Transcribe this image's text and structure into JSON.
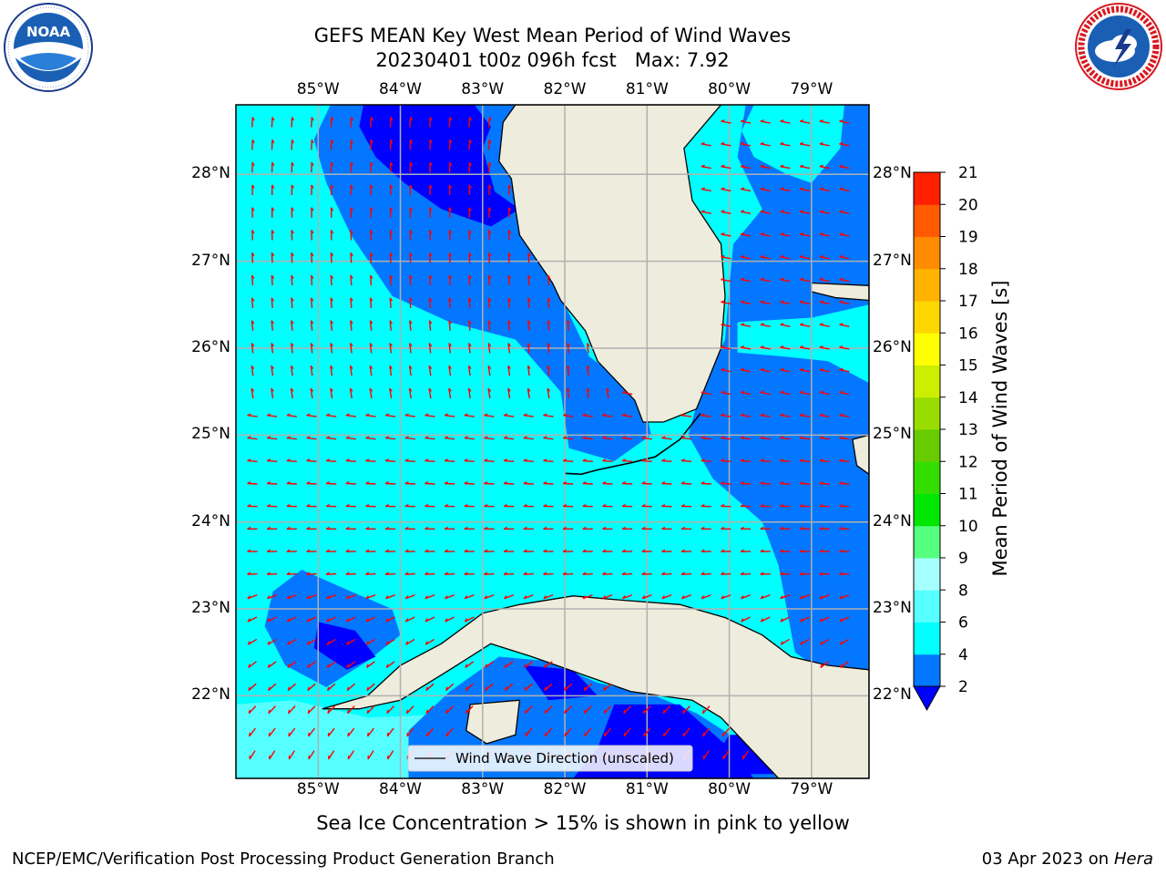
{
  "title": {
    "line1": "GEFS MEAN Key West Mean Period of Wind Waves",
    "line2": "20230401 t00z 096h fcst   Max: 7.92"
  },
  "logos": {
    "noaa": {
      "icon": "noaa-logo",
      "text": "NOAA",
      "ring_text": "NATIONAL OCEANIC AND ATMOSPHERIC ADMINISTRATION · U.S. DEPARTMENT OF COMMERCE"
    },
    "nws": {
      "icon": "nws-logo",
      "ring_text": "NATIONAL WEATHER SERVICE"
    }
  },
  "map": {
    "lon_range": [
      -86,
      -78.3
    ],
    "lat_range": [
      21.05,
      28.8
    ],
    "lon_ticks": [
      "85°W",
      "84°W",
      "83°W",
      "82°W",
      "81°W",
      "80°W",
      "79°W"
    ],
    "lat_ticks": [
      "28°N",
      "27°N",
      "26°N",
      "25°N",
      "24°N",
      "23°N",
      "22°N"
    ],
    "gridlines": true,
    "legend_label": "Wind Wave Direction (unscaled)",
    "colors": {
      "land": "#eeecdc",
      "band_2_4": "#0377ff",
      "band_below_2": "#0000ff",
      "band_4_6": "#00ffff",
      "band_6_8": "#55ffff",
      "arrow": "#ff0000",
      "grid": "#b0b0b0"
    }
  },
  "colorbar": {
    "label": "Mean Period of Wind Waves [s]",
    "ticks": [
      "2",
      "4",
      "6",
      "8",
      "9",
      "10",
      "11",
      "12",
      "13",
      "14",
      "15",
      "16",
      "17",
      "18",
      "19",
      "20",
      "21"
    ],
    "colors": [
      "#0377ff",
      "#00ffff",
      "#55ffff",
      "#a6ffff",
      "#55ff80",
      "#00e600",
      "#33dd00",
      "#66cc00",
      "#99dd00",
      "#ccee00",
      "#ffff00",
      "#ffd700",
      "#ffb300",
      "#ff8c00",
      "#ff5a00",
      "#ff2000"
    ],
    "extend_color": "#0000ff"
  },
  "footer": {
    "ice_note": "Sea Ice Concentration > 15% is shown in pink to yellow",
    "credit": "NCEP/EMC/Verification Post Processing Product Generation Branch",
    "date": "03 Apr 2023 on ",
    "host": "Hera"
  }
}
